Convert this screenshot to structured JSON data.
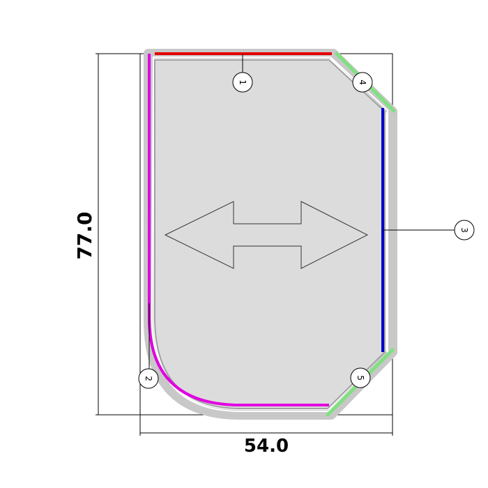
{
  "dimensions": {
    "height_label": "77.0",
    "width_label": "54.0"
  },
  "edges": [
    {
      "number": "1",
      "color": "#e60000"
    },
    {
      "number": "2",
      "color": "#e000e0"
    },
    {
      "number": "3",
      "color": "#0000cc"
    },
    {
      "number": "4",
      "color": "#80e080"
    },
    {
      "number": "5",
      "color": "#80e080"
    }
  ],
  "colors": {
    "panel_fill": "#dcdcdc",
    "panel_outline": "#a0a0a0",
    "outer_band": "#c8c8c8",
    "dimension_lines": "#000000"
  },
  "symbols": {
    "direction_arrow": "double-headed-arrow"
  }
}
